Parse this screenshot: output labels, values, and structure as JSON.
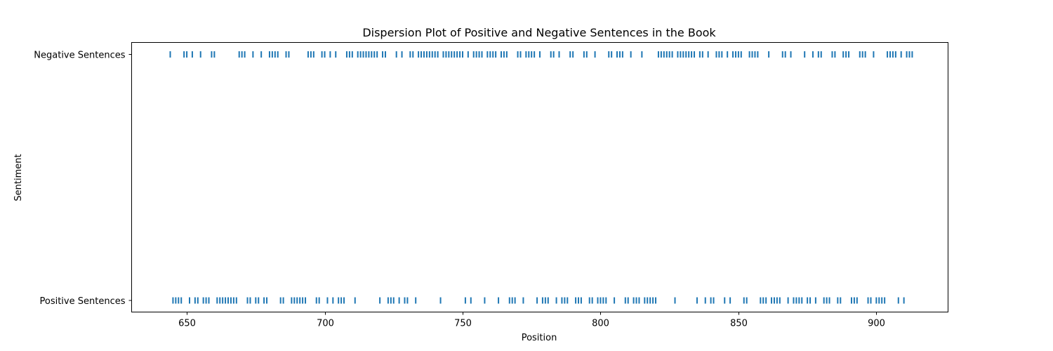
{
  "chart_data": {
    "type": "scatter",
    "title": "Dispersion Plot of Positive and Negative Sentences in the Book",
    "xlabel": "Position",
    "ylabel": "Sentiment",
    "xlim": [
      630,
      926
    ],
    "x_ticks": [
      650,
      700,
      750,
      800,
      850,
      900
    ],
    "categories": [
      "Positive Sentences",
      "Negative Sentences"
    ],
    "marker": "|",
    "color": "#1f77b4",
    "grid": false,
    "series": [
      {
        "name": "Negative Sentences",
        "x": [
          644,
          649,
          650,
          652,
          655,
          659,
          660,
          669,
          670,
          671,
          674,
          677,
          680,
          681,
          682,
          683,
          686,
          687,
          694,
          695,
          696,
          699,
          700,
          702,
          704,
          708,
          709,
          710,
          712,
          713,
          714,
          715,
          716,
          717,
          718,
          719,
          721,
          722,
          726,
          728,
          731,
          732,
          734,
          735,
          736,
          737,
          738,
          739,
          740,
          741,
          743,
          744,
          745,
          746,
          747,
          748,
          749,
          750,
          752,
          754,
          755,
          756,
          757,
          759,
          760,
          761,
          762,
          764,
          765,
          766,
          770,
          771,
          773,
          774,
          775,
          776,
          778,
          782,
          783,
          785,
          789,
          790,
          794,
          795,
          798,
          803,
          804,
          806,
          807,
          808,
          811,
          815,
          821,
          822,
          823,
          824,
          825,
          826,
          828,
          829,
          830,
          831,
          832,
          833,
          834,
          836,
          837,
          839,
          842,
          843,
          844,
          846,
          848,
          849,
          850,
          851,
          854,
          855,
          856,
          857,
          861,
          866,
          867,
          869,
          874,
          877,
          879,
          880,
          884,
          885,
          888,
          889,
          890,
          894,
          895,
          896,
          899,
          904,
          905,
          906,
          907,
          909,
          911,
          912,
          913
        ]
      },
      {
        "name": "Positive Sentences",
        "x": [
          645,
          646,
          647,
          648,
          651,
          653,
          654,
          656,
          657,
          658,
          661,
          662,
          663,
          664,
          665,
          666,
          667,
          668,
          672,
          673,
          675,
          676,
          678,
          679,
          684,
          685,
          688,
          689,
          690,
          691,
          692,
          693,
          697,
          698,
          701,
          703,
          705,
          706,
          707,
          711,
          720,
          723,
          724,
          725,
          727,
          729,
          730,
          733,
          742,
          751,
          753,
          758,
          763,
          767,
          768,
          769,
          772,
          777,
          779,
          780,
          781,
          784,
          786,
          787,
          788,
          791,
          792,
          793,
          796,
          797,
          799,
          800,
          801,
          802,
          805,
          809,
          810,
          812,
          813,
          814,
          816,
          817,
          818,
          819,
          820,
          827,
          835,
          838,
          840,
          841,
          845,
          847,
          852,
          853,
          858,
          859,
          860,
          862,
          863,
          864,
          865,
          868,
          870,
          871,
          872,
          873,
          875,
          876,
          878,
          881,
          882,
          883,
          886,
          887,
          891,
          892,
          893,
          897,
          898,
          900,
          901,
          902,
          903,
          908,
          910
        ]
      }
    ]
  }
}
